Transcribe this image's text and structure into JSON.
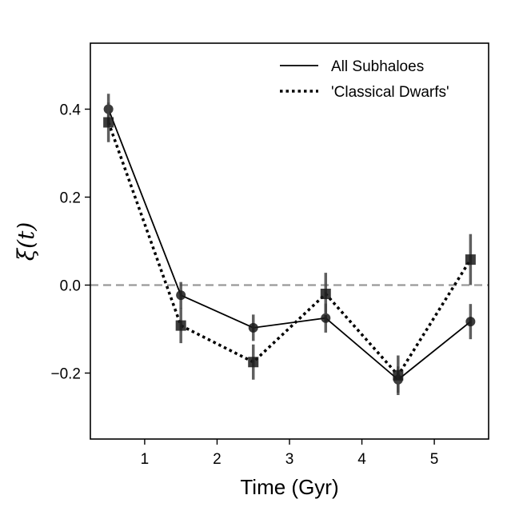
{
  "chart_data": {
    "type": "line",
    "xlabel": "Time (Gyr)",
    "ylabel": "ξ(t)",
    "xlim": [
      0.25,
      5.75
    ],
    "ylim": [
      -0.35,
      0.55
    ],
    "xticks": [
      1,
      2,
      3,
      4,
      5
    ],
    "yticks": [
      -0.2,
      0.0,
      0.2,
      0.4
    ],
    "ytick_labels": [
      "−0.2",
      "0.0",
      "0.2",
      "0.4"
    ],
    "reference_line": {
      "y": 0.0,
      "style": "dashed",
      "color": "#999999"
    },
    "legend_position": "top-right",
    "series": [
      {
        "name": "All Subhaloes",
        "linestyle": "solid",
        "marker": "circle",
        "color": "#000000",
        "x": [
          0.5,
          1.5,
          2.5,
          3.5,
          4.5,
          5.5
        ],
        "y": [
          0.4,
          -0.023,
          -0.097,
          -0.075,
          -0.215,
          -0.083
        ],
        "err": [
          0.035,
          0.03,
          0.03,
          0.033,
          0.03,
          0.04
        ]
      },
      {
        "name": "'Classical Dwarfs'",
        "linestyle": "dotted",
        "marker": "square",
        "color": "#000000",
        "x": [
          0.5,
          1.5,
          2.5,
          3.5,
          4.5,
          5.5
        ],
        "y": [
          0.37,
          -0.092,
          -0.175,
          -0.02,
          -0.205,
          0.058
        ],
        "err": [
          0.045,
          0.04,
          0.04,
          0.048,
          0.045,
          0.058
        ]
      }
    ]
  }
}
